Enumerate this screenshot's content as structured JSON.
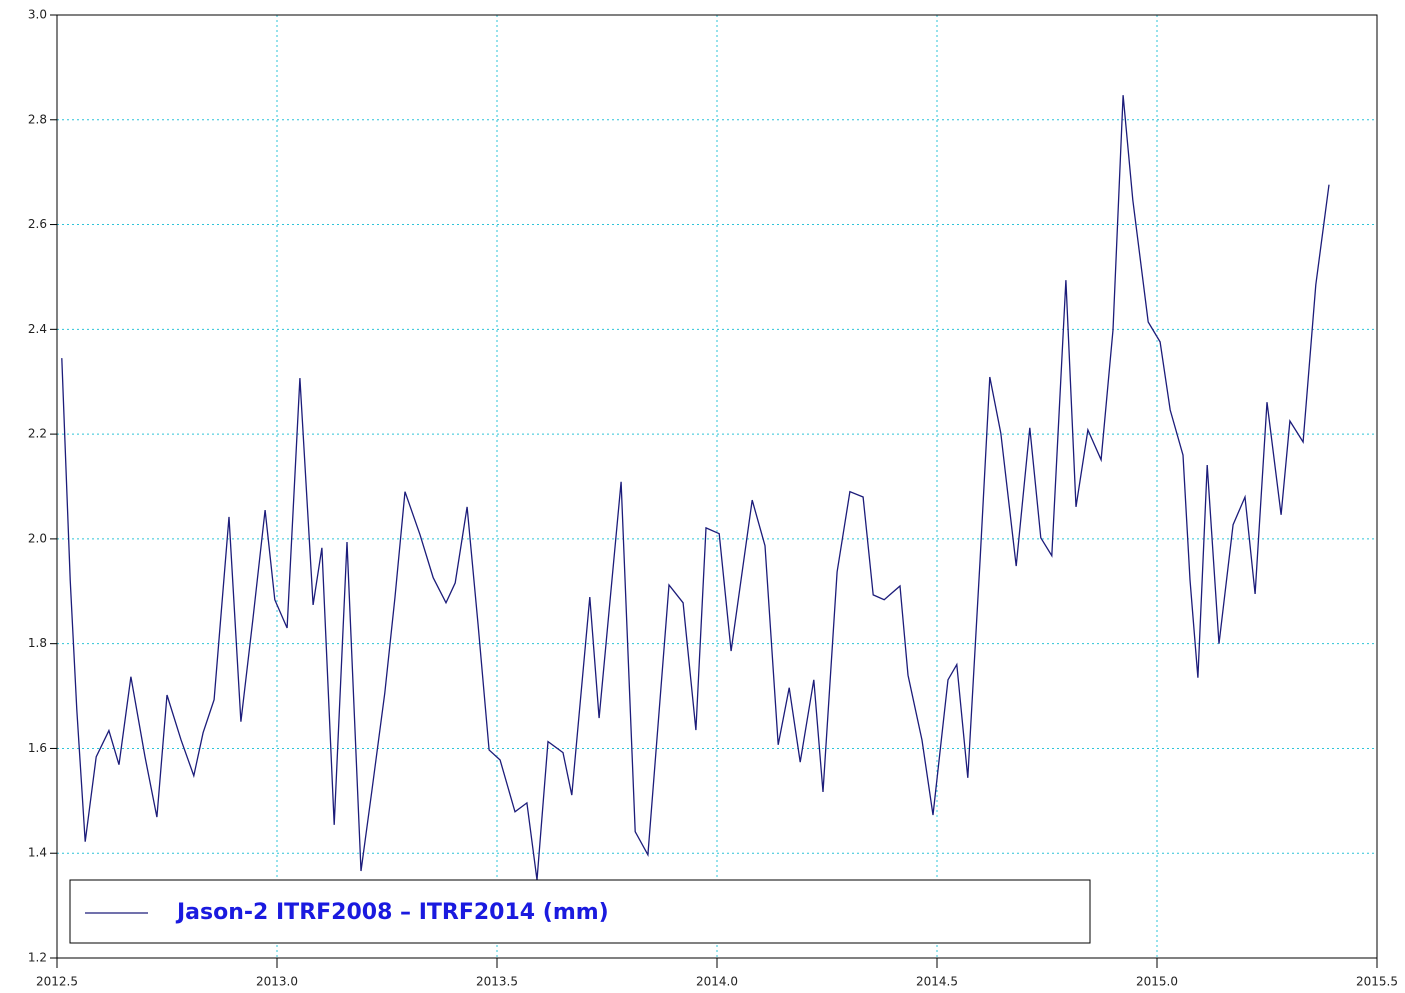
{
  "chart_data": {
    "type": "line",
    "x": [
      2012.511,
      2012.53,
      2012.545,
      2012.564,
      2012.589,
      2012.618,
      2012.641,
      2012.668,
      2012.7,
      2012.727,
      2012.75,
      2012.782,
      2012.811,
      2012.832,
      2012.857,
      2012.891,
      2012.918,
      2012.945,
      2012.973,
      2012.995,
      2013.023,
      2013.052,
      2013.082,
      2013.102,
      2013.13,
      2013.159,
      2013.191,
      2013.216,
      2013.245,
      2013.268,
      2013.291,
      2013.325,
      2013.355,
      2013.384,
      2013.405,
      2013.432,
      2013.457,
      2013.482,
      2013.507,
      2013.541,
      2013.568,
      2013.591,
      2013.616,
      2013.65,
      2013.67,
      2013.711,
      2013.732,
      2013.782,
      2013.814,
      2013.843,
      2013.891,
      2013.923,
      2013.952,
      2013.975,
      2014.005,
      2014.032,
      2014.08,
      2014.109,
      2014.139,
      2014.164,
      2014.189,
      2014.22,
      2014.241,
      2014.273,
      2014.302,
      2014.332,
      2014.355,
      2014.38,
      2014.416,
      2014.434,
      2014.466,
      2014.491,
      2014.525,
      2014.545,
      2014.57,
      2014.598,
      2014.62,
      2014.645,
      2014.68,
      2014.711,
      2014.736,
      2014.761,
      2014.793,
      2014.816,
      2014.843,
      2014.873,
      2014.9,
      2014.923,
      2014.945,
      2014.98,
      2015.007,
      2015.03,
      2015.059,
      2015.075,
      2015.093,
      2015.114,
      2015.141,
      2015.173,
      2015.2,
      2015.223,
      2015.25,
      2015.282,
      2015.302,
      2015.332,
      2015.361,
      2015.391
    ],
    "series": [
      {
        "name": "Jason-2 ITRF2008 – ITRF2014 (mm)",
        "color": "#1c1c7a",
        "values": [
          2.345,
          1.922,
          1.674,
          1.422,
          1.584,
          1.634,
          1.569,
          1.737,
          1.584,
          1.469,
          1.702,
          1.616,
          1.548,
          1.63,
          1.693,
          2.042,
          1.651,
          1.845,
          2.055,
          1.884,
          1.83,
          2.307,
          1.874,
          1.983,
          1.454,
          1.994,
          1.366,
          1.521,
          1.706,
          1.887,
          2.09,
          2.008,
          1.926,
          1.878,
          1.916,
          2.061,
          1.836,
          1.597,
          1.578,
          1.479,
          1.496,
          1.349,
          1.613,
          1.592,
          1.511,
          1.889,
          1.658,
          2.109,
          1.441,
          1.397,
          1.912,
          1.878,
          1.635,
          2.021,
          2.01,
          1.786,
          2.074,
          1.987,
          1.607,
          1.716,
          1.574,
          1.731,
          1.517,
          1.937,
          2.09,
          2.08,
          1.893,
          1.884,
          1.91,
          1.74,
          1.616,
          1.473,
          1.731,
          1.76,
          1.544,
          1.96,
          2.309,
          2.202,
          1.948,
          2.212,
          2.002,
          1.968,
          2.494,
          2.061,
          2.208,
          2.151,
          2.399,
          2.847,
          2.647,
          2.414,
          2.376,
          2.246,
          2.16,
          1.922,
          1.735,
          2.141,
          1.8,
          2.027,
          2.08,
          1.895,
          2.261,
          2.046,
          2.225,
          2.185,
          2.485,
          2.676
        ]
      }
    ],
    "xlim": [
      2012.5,
      2015.5
    ],
    "xticks": [
      2012.5,
      {
        "value": 2013,
        "label": "2013.0"
      },
      2013.5,
      {
        "value": 2014,
        "label": "2014.0"
      },
      2014.5,
      {
        "value": 2015,
        "label": "2015.0"
      },
      2015.5
    ],
    "ylim": [
      1.2,
      3.0
    ],
    "yticks": [
      1.2,
      1.4,
      1.6,
      1.8,
      {
        "value": 2,
        "label": "2.0"
      },
      2.2,
      2.4,
      2.6,
      2.8,
      {
        "value": 3,
        "label": "3.0"
      }
    ],
    "grid": true,
    "legend": "lower left"
  }
}
